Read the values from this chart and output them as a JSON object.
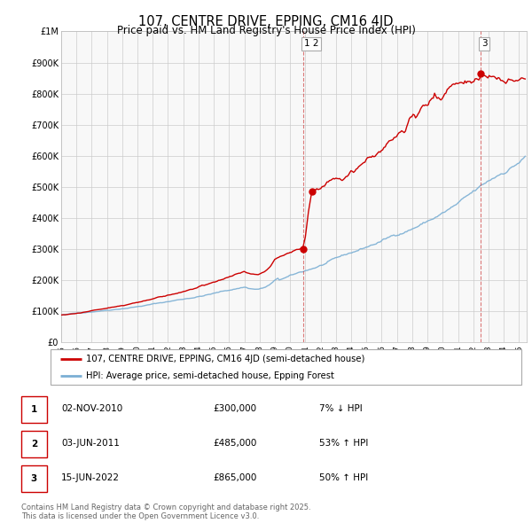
{
  "title": "107, CENTRE DRIVE, EPPING, CM16 4JD",
  "subtitle": "Price paid vs. HM Land Registry's House Price Index (HPI)",
  "title_fontsize": 10.5,
  "subtitle_fontsize": 8.5,
  "legend_line1": "107, CENTRE DRIVE, EPPING, CM16 4JD (semi-detached house)",
  "legend_line2": "HPI: Average price, semi-detached house, Epping Forest",
  "property_color": "#cc0000",
  "hpi_color": "#7bafd4",
  "ylim": [
    0,
    1000000
  ],
  "xlim_start": 1995,
  "xlim_end": 2025.5,
  "yticks": [
    0,
    100000,
    200000,
    300000,
    400000,
    500000,
    600000,
    700000,
    800000,
    900000,
    1000000
  ],
  "ytick_labels": [
    "£0",
    "£100K",
    "£200K",
    "£300K",
    "£400K",
    "£500K",
    "£600K",
    "£700K",
    "£800K",
    "£900K",
    "£1M"
  ],
  "xticks": [
    1995,
    1996,
    1997,
    1998,
    1999,
    2000,
    2001,
    2002,
    2003,
    2004,
    2005,
    2006,
    2007,
    2008,
    2009,
    2010,
    2011,
    2012,
    2013,
    2014,
    2015,
    2016,
    2017,
    2018,
    2019,
    2020,
    2021,
    2022,
    2023,
    2024,
    2025
  ],
  "transactions": [
    {
      "num": 1,
      "date": "02-NOV-2010",
      "price": 300000,
      "x": 2010.84,
      "pct": "7%",
      "dir": "↓"
    },
    {
      "num": 2,
      "date": "03-JUN-2011",
      "price": 485000,
      "x": 2011.42,
      "pct": "53%",
      "dir": "↑"
    },
    {
      "num": 3,
      "date": "15-JUN-2022",
      "price": 865000,
      "x": 2022.45,
      "pct": "50%",
      "dir": "↑"
    }
  ],
  "vline_x12": 2010.84,
  "vline_x3": 2022.45,
  "footnote": "Contains HM Land Registry data © Crown copyright and database right 2025.\nThis data is licensed under the Open Government Licence v3.0.",
  "grid_color": "#cccccc",
  "chart_bg": "#f8f8f8"
}
